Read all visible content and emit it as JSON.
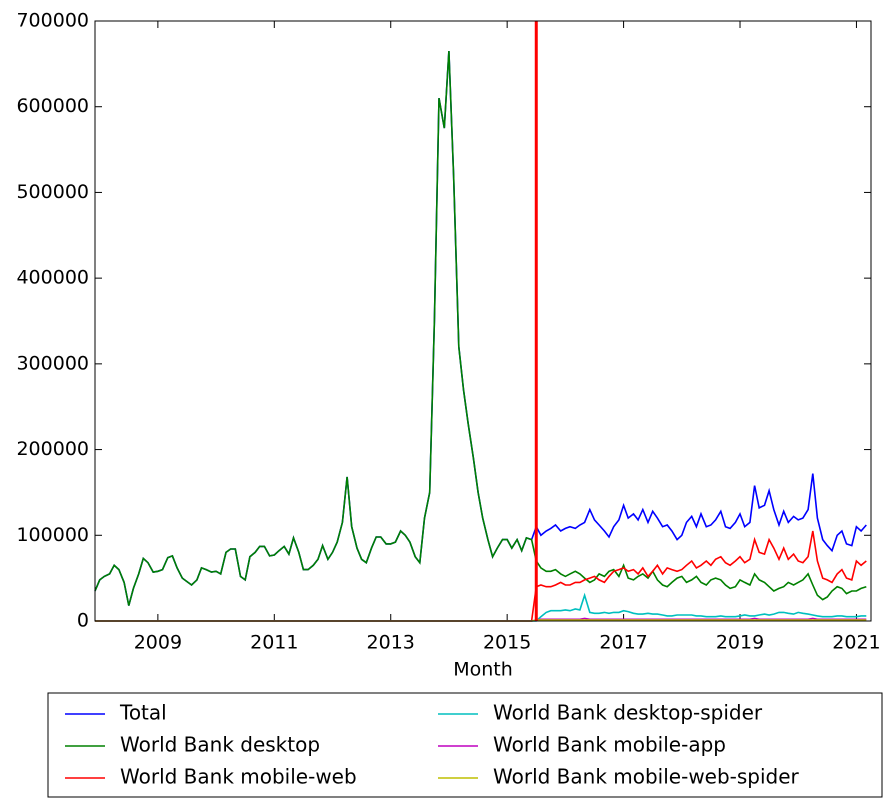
{
  "chart_data": {
    "type": "line",
    "xlabel": "Month",
    "x": [
      2007.92,
      2008,
      2008.08,
      2008.17,
      2008.25,
      2008.33,
      2008.42,
      2008.5,
      2008.58,
      2008.67,
      2008.75,
      2008.83,
      2008.92,
      2009,
      2009.08,
      2009.17,
      2009.25,
      2009.33,
      2009.42,
      2009.5,
      2009.58,
      2009.67,
      2009.75,
      2009.83,
      2009.92,
      2010,
      2010.08,
      2010.17,
      2010.25,
      2010.33,
      2010.42,
      2010.5,
      2010.58,
      2010.67,
      2010.75,
      2010.83,
      2010.92,
      2011,
      2011.08,
      2011.17,
      2011.25,
      2011.33,
      2011.42,
      2011.5,
      2011.58,
      2011.67,
      2011.75,
      2011.83,
      2011.92,
      2012,
      2012.08,
      2012.17,
      2012.25,
      2012.33,
      2012.42,
      2012.5,
      2012.58,
      2012.67,
      2012.75,
      2012.83,
      2012.92,
      2013,
      2013.08,
      2013.17,
      2013.25,
      2013.33,
      2013.42,
      2013.5,
      2013.58,
      2013.67,
      2013.75,
      2013.83,
      2013.92,
      2014,
      2014.08,
      2014.17,
      2014.25,
      2014.33,
      2014.42,
      2014.5,
      2014.58,
      2014.67,
      2014.75,
      2014.83,
      2014.92,
      2015,
      2015.08,
      2015.17,
      2015.25,
      2015.33,
      2015.42,
      2015.5,
      2015.58,
      2015.67,
      2015.75,
      2015.83,
      2015.92,
      2016,
      2016.08,
      2016.17,
      2016.25,
      2016.33,
      2016.42,
      2016.5,
      2016.58,
      2016.67,
      2016.75,
      2016.83,
      2016.92,
      2017,
      2017.08,
      2017.17,
      2017.25,
      2017.33,
      2017.42,
      2017.5,
      2017.58,
      2017.67,
      2017.75,
      2017.83,
      2017.92,
      2018,
      2018.08,
      2018.17,
      2018.25,
      2018.33,
      2018.42,
      2018.5,
      2018.58,
      2018.67,
      2018.75,
      2018.83,
      2018.92,
      2019,
      2019.08,
      2019.17,
      2019.25,
      2019.33,
      2019.42,
      2019.5,
      2019.58,
      2019.67,
      2019.75,
      2019.83,
      2019.92,
      2020,
      2020.08,
      2020.17,
      2020.25,
      2020.33,
      2020.42,
      2020.5,
      2020.58,
      2020.67,
      2020.75,
      2020.83,
      2020.92,
      2021,
      2021.08,
      2021.17
    ],
    "series": [
      {
        "name": "Total",
        "color": "#0000ff",
        "values": [
          35000,
          48000,
          52000,
          55000,
          65000,
          60000,
          45000,
          18000,
          38000,
          55000,
          73000,
          68000,
          57000,
          58000,
          60000,
          74000,
          76000,
          62000,
          50000,
          46000,
          42000,
          48000,
          62000,
          60000,
          57000,
          58000,
          55000,
          80000,
          84000,
          84000,
          52000,
          48000,
          75000,
          80000,
          87000,
          87000,
          76000,
          77000,
          82000,
          87000,
          78000,
          97000,
          80000,
          60000,
          60000,
          65000,
          72000,
          88000,
          72000,
          80000,
          92000,
          115000,
          168000,
          110000,
          85000,
          72000,
          68000,
          85000,
          98000,
          98000,
          90000,
          90000,
          92000,
          105000,
          100000,
          92000,
          75000,
          68000,
          120000,
          150000,
          350000,
          610000,
          575000,
          665000,
          520000,
          320000,
          270000,
          230000,
          190000,
          150000,
          120000,
          95000,
          75000,
          85000,
          95000,
          95000,
          85000,
          95000,
          82000,
          97000,
          95000,
          110000,
          100000,
          105000,
          108000,
          112000,
          105000,
          108000,
          110000,
          108000,
          112000,
          115000,
          130000,
          118000,
          112000,
          105000,
          98000,
          110000,
          118000,
          135000,
          120000,
          125000,
          118000,
          130000,
          115000,
          128000,
          120000,
          110000,
          112000,
          105000,
          95000,
          100000,
          115000,
          122000,
          110000,
          125000,
          110000,
          112000,
          118000,
          128000,
          110000,
          108000,
          115000,
          125000,
          110000,
          115000,
          158000,
          132000,
          135000,
          152000,
          130000,
          112000,
          128000,
          115000,
          122000,
          118000,
          120000,
          130000,
          172000,
          120000,
          95000,
          88000,
          82000,
          100000,
          105000,
          90000,
          88000,
          110000,
          105000,
          112000
        ]
      },
      {
        "name": "World Bank desktop",
        "color": "#008000",
        "values": [
          35000,
          48000,
          52000,
          55000,
          65000,
          60000,
          45000,
          18000,
          38000,
          55000,
          73000,
          68000,
          57000,
          58000,
          60000,
          74000,
          76000,
          62000,
          50000,
          46000,
          42000,
          48000,
          62000,
          60000,
          57000,
          58000,
          55000,
          80000,
          84000,
          84000,
          52000,
          48000,
          75000,
          80000,
          87000,
          87000,
          76000,
          77000,
          82000,
          87000,
          78000,
          97000,
          80000,
          60000,
          60000,
          65000,
          72000,
          88000,
          72000,
          80000,
          92000,
          115000,
          168000,
          110000,
          85000,
          72000,
          68000,
          85000,
          98000,
          98000,
          90000,
          90000,
          92000,
          105000,
          100000,
          92000,
          75000,
          68000,
          120000,
          150000,
          350000,
          610000,
          575000,
          665000,
          520000,
          320000,
          270000,
          230000,
          190000,
          150000,
          120000,
          95000,
          75000,
          85000,
          95000,
          95000,
          85000,
          95000,
          82000,
          97000,
          95000,
          70000,
          62000,
          58000,
          58000,
          60000,
          55000,
          52000,
          55000,
          58000,
          55000,
          50000,
          45000,
          48000,
          55000,
          52000,
          58000,
          60000,
          52000,
          65000,
          50000,
          48000,
          52000,
          55000,
          50000,
          58000,
          48000,
          42000,
          40000,
          45000,
          50000,
          52000,
          45000,
          48000,
          52000,
          45000,
          42000,
          48000,
          50000,
          48000,
          42000,
          38000,
          40000,
          48000,
          45000,
          42000,
          55000,
          48000,
          45000,
          40000,
          35000,
          38000,
          40000,
          45000,
          42000,
          45000,
          48000,
          55000,
          42000,
          30000,
          25000,
          28000,
          35000,
          40000,
          38000,
          32000,
          35000,
          35000,
          38000,
          40000
        ]
      },
      {
        "name": "World Bank mobile-web",
        "color": "#ff0000",
        "values": [
          0,
          0,
          0,
          0,
          0,
          0,
          0,
          0,
          0,
          0,
          0,
          0,
          0,
          0,
          0,
          0,
          0,
          0,
          0,
          0,
          0,
          0,
          0,
          0,
          0,
          0,
          0,
          0,
          0,
          0,
          0,
          0,
          0,
          0,
          0,
          0,
          0,
          0,
          0,
          0,
          0,
          0,
          0,
          0,
          0,
          0,
          0,
          0,
          0,
          0,
          0,
          0,
          0,
          0,
          0,
          0,
          0,
          0,
          0,
          0,
          0,
          0,
          0,
          0,
          0,
          0,
          0,
          0,
          0,
          0,
          0,
          0,
          0,
          0,
          0,
          0,
          0,
          0,
          0,
          0,
          0,
          0,
          0,
          0,
          0,
          0,
          0,
          0,
          0,
          0,
          0,
          40000,
          42000,
          40000,
          40000,
          42000,
          45000,
          42000,
          42000,
          45000,
          45000,
          48000,
          50000,
          52000,
          48000,
          45000,
          52000,
          58000,
          60000,
          62000,
          58000,
          60000,
          55000,
          62000,
          52000,
          58000,
          65000,
          55000,
          62000,
          60000,
          58000,
          60000,
          65000,
          70000,
          62000,
          65000,
          70000,
          65000,
          72000,
          75000,
          68000,
          65000,
          70000,
          75000,
          68000,
          72000,
          95000,
          80000,
          78000,
          95000,
          85000,
          72000,
          85000,
          72000,
          78000,
          70000,
          68000,
          75000,
          105000,
          70000,
          50000,
          48000,
          45000,
          55000,
          60000,
          50000,
          48000,
          70000,
          65000,
          70000
        ]
      },
      {
        "name": "World Bank desktop-spider",
        "color": "#00bfbf",
        "values": [
          0,
          0,
          0,
          0,
          0,
          0,
          0,
          0,
          0,
          0,
          0,
          0,
          0,
          0,
          0,
          0,
          0,
          0,
          0,
          0,
          0,
          0,
          0,
          0,
          0,
          0,
          0,
          0,
          0,
          0,
          0,
          0,
          0,
          0,
          0,
          0,
          0,
          0,
          0,
          0,
          0,
          0,
          0,
          0,
          0,
          0,
          0,
          0,
          0,
          0,
          0,
          0,
          0,
          0,
          0,
          0,
          0,
          0,
          0,
          0,
          0,
          0,
          0,
          0,
          0,
          0,
          0,
          0,
          0,
          0,
          0,
          0,
          0,
          0,
          0,
          0,
          0,
          0,
          0,
          0,
          0,
          0,
          0,
          0,
          0,
          0,
          0,
          0,
          0,
          0,
          0,
          0,
          5000,
          10000,
          12000,
          12000,
          12000,
          13000,
          12000,
          14000,
          13000,
          30000,
          10000,
          9000,
          9000,
          10000,
          9000,
          10000,
          10000,
          12000,
          11000,
          9000,
          8000,
          8000,
          9000,
          8000,
          8000,
          7000,
          6000,
          6000,
          7000,
          7000,
          7000,
          7000,
          6000,
          6000,
          5000,
          5000,
          5000,
          6000,
          5000,
          5000,
          5000,
          6000,
          7000,
          6000,
          6000,
          7000,
          8000,
          7000,
          8000,
          10000,
          10000,
          9000,
          8000,
          10000,
          9000,
          8000,
          7000,
          6000,
          5000,
          5000,
          5000,
          6000,
          6000,
          5000,
          5000,
          5000,
          6000,
          6000
        ]
      },
      {
        "name": "World Bank mobile-app",
        "color": "#bf00bf",
        "values": [
          0,
          0,
          0,
          0,
          0,
          0,
          0,
          0,
          0,
          0,
          0,
          0,
          0,
          0,
          0,
          0,
          0,
          0,
          0,
          0,
          0,
          0,
          0,
          0,
          0,
          0,
          0,
          0,
          0,
          0,
          0,
          0,
          0,
          0,
          0,
          0,
          0,
          0,
          0,
          0,
          0,
          0,
          0,
          0,
          0,
          0,
          0,
          0,
          0,
          0,
          0,
          0,
          0,
          0,
          0,
          0,
          0,
          0,
          0,
          0,
          0,
          0,
          0,
          0,
          0,
          0,
          0,
          0,
          0,
          0,
          0,
          0,
          0,
          0,
          0,
          0,
          0,
          0,
          0,
          0,
          0,
          0,
          0,
          0,
          0,
          0,
          0,
          0,
          0,
          0,
          0,
          1000,
          2000,
          2000,
          2000,
          2000,
          2000,
          2000,
          2000,
          2000,
          2000,
          3000,
          2000,
          2000,
          2000,
          2000,
          2000,
          2000,
          2000,
          2000,
          2000,
          2000,
          2000,
          2000,
          2000,
          2000,
          2000,
          2000,
          2000,
          2000,
          2000,
          2000,
          2000,
          2000,
          2000,
          2000,
          2000,
          2000,
          2000,
          2000,
          2000,
          2000,
          2000,
          2000,
          2000,
          2000,
          3000,
          2000,
          2000,
          2000,
          2000,
          2000,
          2000,
          2000,
          2000,
          2000,
          2000,
          2000,
          3000,
          2000,
          2000,
          2000,
          2000,
          2000,
          2000,
          2000,
          2000,
          2000,
          2000,
          2000
        ]
      },
      {
        "name": "World Bank mobile-web-spider",
        "color": "#bfbf00",
        "values": [
          0,
          0,
          0,
          0,
          0,
          0,
          0,
          0,
          0,
          0,
          0,
          0,
          0,
          0,
          0,
          0,
          0,
          0,
          0,
          0,
          0,
          0,
          0,
          0,
          0,
          0,
          0,
          0,
          0,
          0,
          0,
          0,
          0,
          0,
          0,
          0,
          0,
          0,
          0,
          0,
          0,
          0,
          0,
          0,
          0,
          0,
          0,
          0,
          0,
          0,
          0,
          0,
          0,
          0,
          0,
          0,
          0,
          0,
          0,
          0,
          0,
          0,
          0,
          0,
          0,
          0,
          0,
          0,
          0,
          0,
          0,
          0,
          0,
          0,
          0,
          0,
          0,
          0,
          0,
          0,
          0,
          0,
          0,
          0,
          0,
          0,
          0,
          0,
          0,
          0,
          0,
          1000,
          1000,
          1000,
          1000,
          1000,
          1000,
          1000,
          1000,
          1000,
          1000,
          1000,
          1000,
          1000,
          1000,
          1000,
          1000,
          1000,
          1000,
          1000,
          1000,
          1000,
          1000,
          1000,
          1000,
          1000,
          1000,
          1000,
          1000,
          1000,
          1000,
          1000,
          1000,
          1000,
          1000,
          1000,
          1000,
          1000,
          1000,
          1000,
          1000,
          1000,
          1000,
          1000,
          1000,
          1000,
          1000,
          1000,
          1000,
          1000,
          1000,
          1000,
          1000,
          1000,
          1000,
          1000,
          1000,
          1000,
          1000,
          1000,
          1000,
          1000,
          1000,
          1000,
          1000,
          1000,
          1000,
          1000,
          1000,
          1000
        ]
      }
    ],
    "xlim": [
      2007.92,
      2021.25
    ],
    "xticks": [
      2009,
      2011,
      2013,
      2015,
      2017,
      2019,
      2021
    ],
    "ylim": [
      0,
      700000
    ],
    "yticks": [
      0,
      100000,
      200000,
      300000,
      400000,
      500000,
      600000,
      700000
    ],
    "vline": 2015.5,
    "vline_color": "#ff0000",
    "legend": "below",
    "legend_columns": 2
  }
}
